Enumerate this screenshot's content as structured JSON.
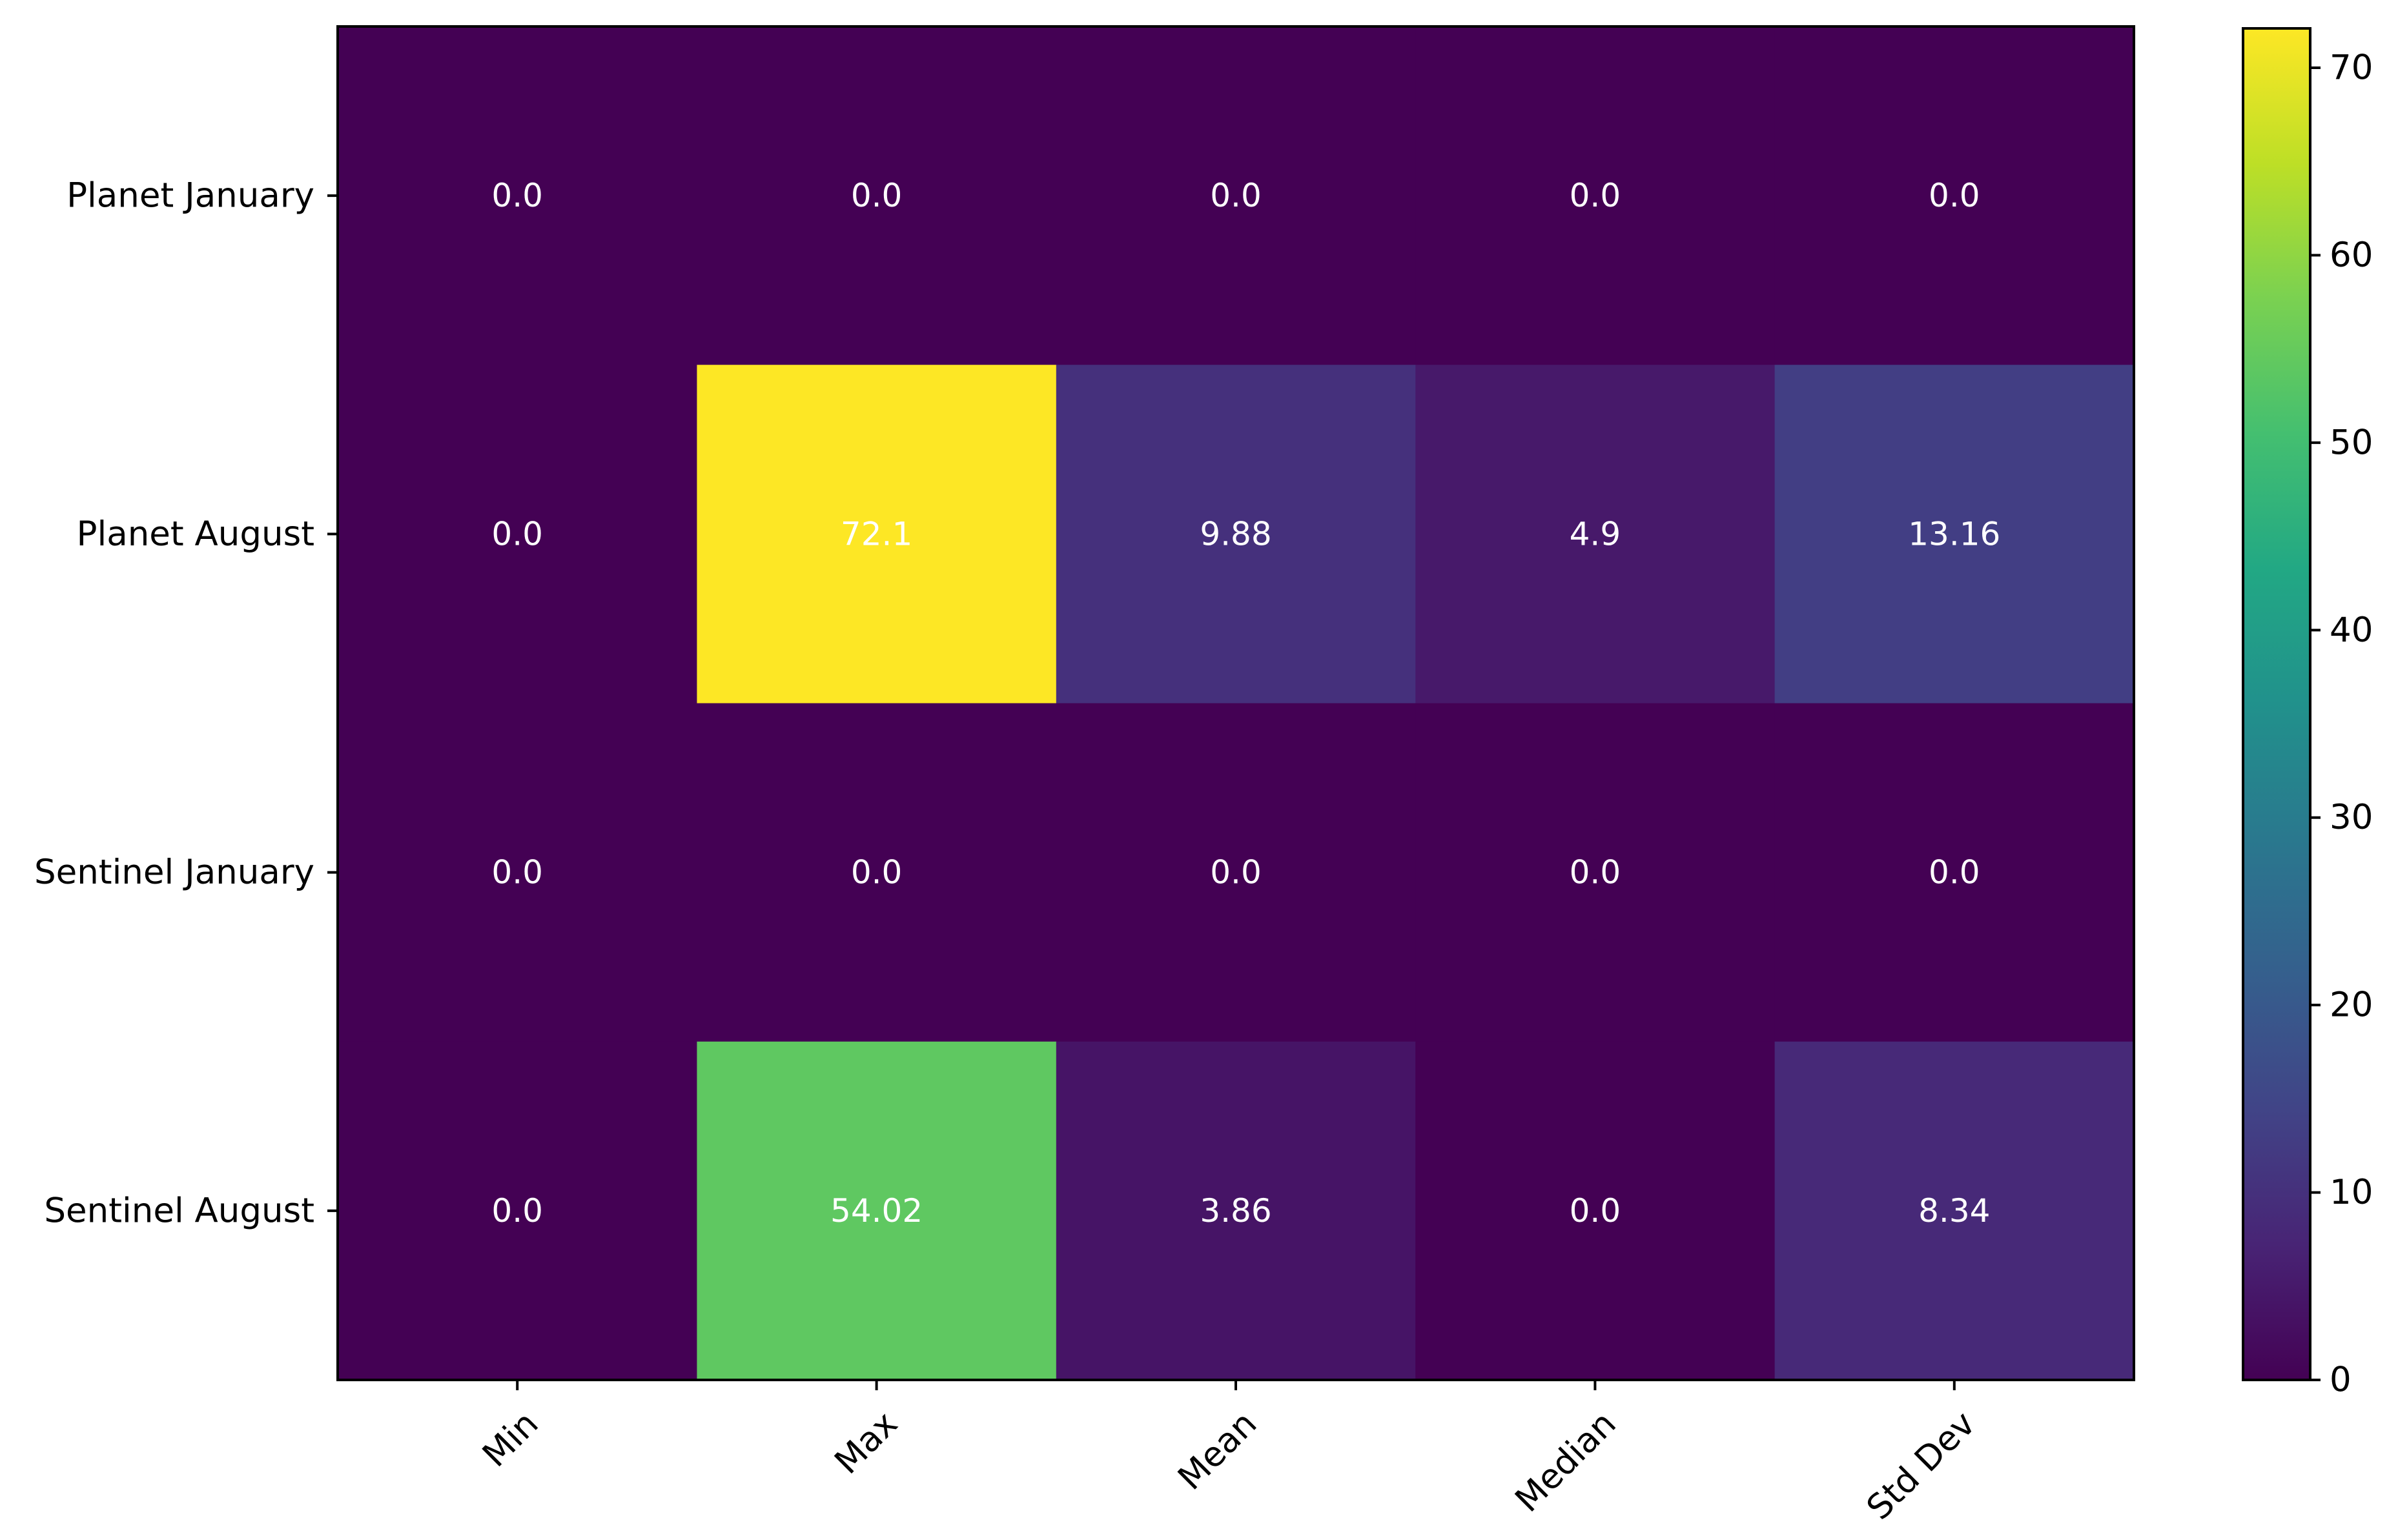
{
  "chart_data": {
    "type": "heatmap",
    "title": "",
    "xlabel": "",
    "ylabel": "",
    "x_categories": [
      "Min",
      "Max",
      "Mean",
      "Median",
      "Std Dev"
    ],
    "y_categories": [
      "Planet January",
      "Planet August",
      "Sentinel January",
      "Sentinel August"
    ],
    "values": [
      [
        0.0,
        0.0,
        0.0,
        0.0,
        0.0
      ],
      [
        0.0,
        72.1,
        9.88,
        4.9,
        13.16
      ],
      [
        0.0,
        0.0,
        0.0,
        0.0,
        0.0
      ],
      [
        0.0,
        54.02,
        3.86,
        0.0,
        8.34
      ]
    ],
    "cell_labels": [
      [
        "0.0",
        "0.0",
        "0.0",
        "0.0",
        "0.0"
      ],
      [
        "0.0",
        "72.1",
        "9.88",
        "4.9",
        "13.16"
      ],
      [
        "0.0",
        "0.0",
        "0.0",
        "0.0",
        "0.0"
      ],
      [
        "0.0",
        "54.02",
        "3.86",
        "0.0",
        "8.34"
      ]
    ],
    "colormap": "viridis",
    "colorbar": {
      "range": [
        0,
        72.1
      ],
      "ticks": [
        0,
        10,
        20,
        30,
        40,
        50,
        60,
        70
      ],
      "tick_labels": [
        "0",
        "10",
        "20",
        "30",
        "40",
        "50",
        "60",
        "70"
      ],
      "placement": "right"
    },
    "x_tick_rotation_deg": 45,
    "grid": false
  }
}
